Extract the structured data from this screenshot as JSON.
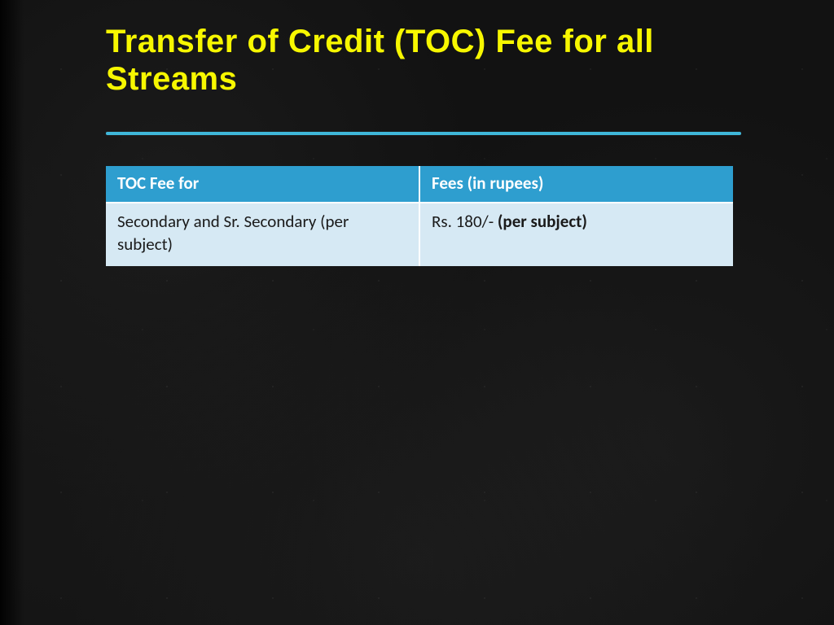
{
  "title": "Transfer of Credit (TOC) Fee for all Streams",
  "title_color": "#f7f700",
  "divider_color": "#3fb7d9",
  "table": {
    "header_bg": "#2e9ecf",
    "header_text_color": "#ffffff",
    "row_bg": "#d6e9f4",
    "row_text_color": "#1a1a1a",
    "border_color": "#ffffff",
    "columns": [
      "TOC Fee for",
      "Fees (in rupees)"
    ],
    "col_widths_pct": [
      50,
      50
    ],
    "rows": [
      {
        "label": "Secondary and Sr. Secondary (per subject)",
        "fee_prefix": "Rs. 180/- ",
        "fee_bold": "(per subject)"
      }
    ]
  },
  "background_color": "#121212"
}
